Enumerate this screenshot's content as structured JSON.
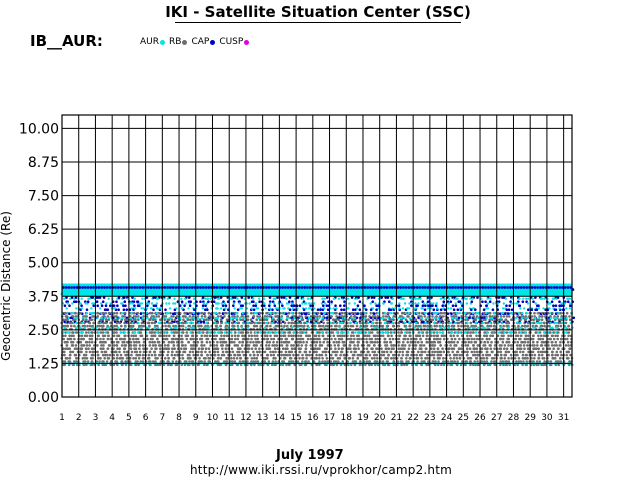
{
  "header": {
    "title": "IKI - Satellite Situation Center (SSC)",
    "station": "IB__AUR:"
  },
  "legend": [
    {
      "label": "AUR",
      "color": "#00e5e5"
    },
    {
      "label": "RB",
      "color": "#6e6e6e"
    },
    {
      "label": "CAP",
      "color": "#0000c8"
    },
    {
      "label": "CUSP",
      "color": "#e000e0"
    }
  ],
  "footer": {
    "month_label": "July    1997",
    "url": "http://www.iki.rssi.ru/vprokhor/camp2.htm"
  },
  "chart_data": {
    "type": "scatter",
    "title": "IKI - Satellite Situation Center (SSC)",
    "ylabel": "Geocentric Distance (Re)",
    "xlabel": "July 1997",
    "ylim": [
      0,
      10.5
    ],
    "y_ticks": [
      "10.00",
      "8.75",
      "7.50",
      "6.25",
      "5.00",
      "3.75",
      "2.50",
      "1.25",
      "0.00"
    ],
    "x_ticks": [
      "1",
      "2",
      "3",
      "4",
      "5",
      "6",
      "7",
      "8",
      "9",
      "10",
      "11",
      "12",
      "13",
      "14",
      "15",
      "16",
      "17",
      "18",
      "19",
      "20",
      "21",
      "22",
      "23",
      "24",
      "25",
      "26",
      "27",
      "28",
      "29",
      "30",
      "31"
    ],
    "grid": true,
    "regions": [
      {
        "name": "AUR",
        "color": "#00e5e5",
        "y_range": [
          2.4,
          4.2
        ]
      },
      {
        "name": "RB",
        "color": "#6e6e6e",
        "y_range": [
          1.2,
          3.2
        ]
      },
      {
        "name": "CAP",
        "color": "#0000c8",
        "y_range": [
          2.8,
          4.2
        ]
      },
      {
        "name": "CUSP",
        "color": "#e000e0",
        "y_range": [
          1.25,
          1.3
        ]
      }
    ],
    "orbits_per_day": 6
  }
}
